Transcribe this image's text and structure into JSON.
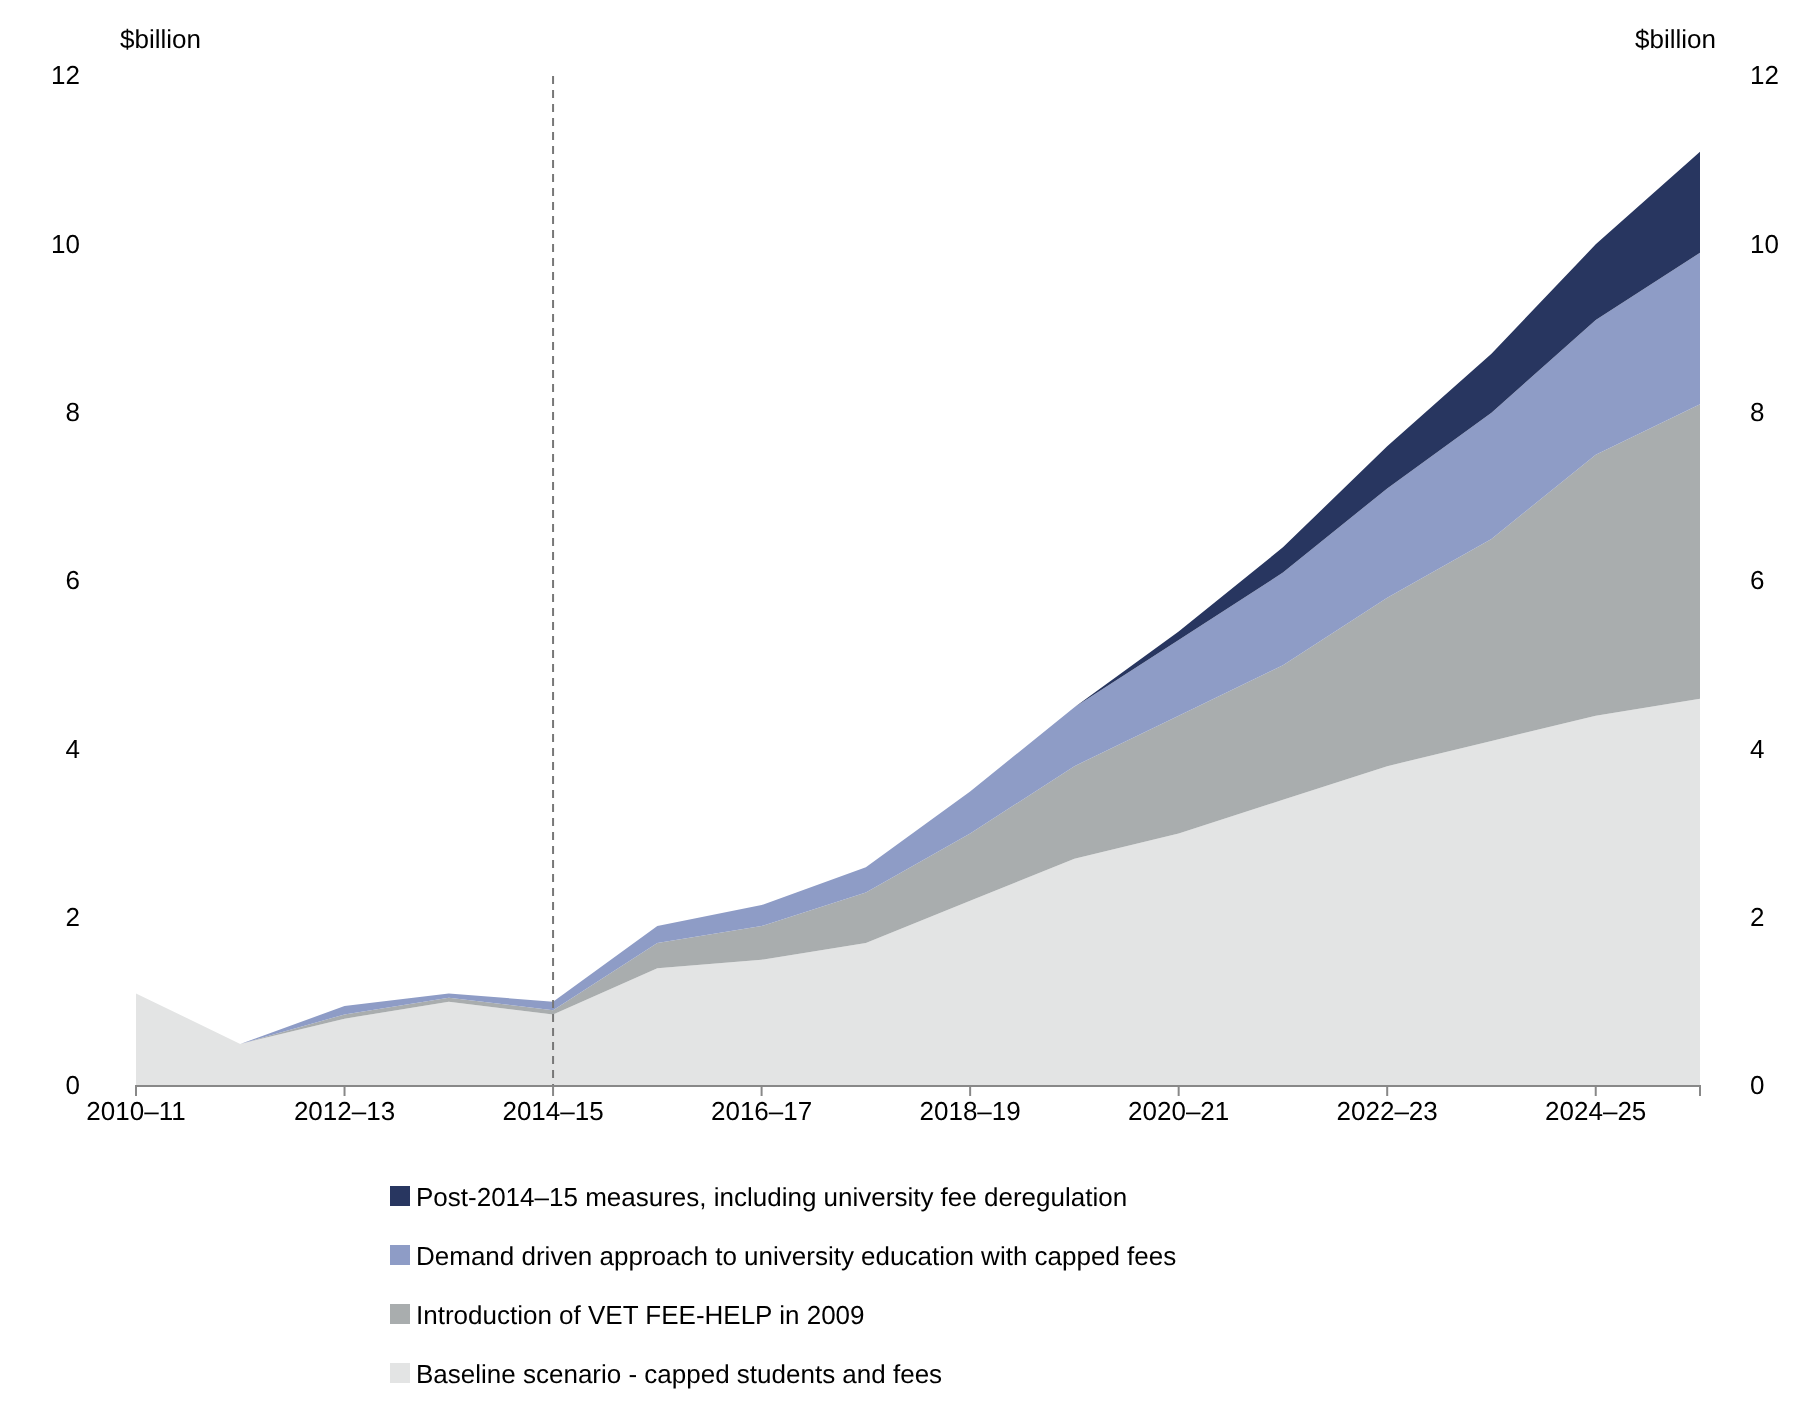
{
  "chart_data": {
    "type": "area",
    "stacked": true,
    "categories": [
      "2010–11",
      null,
      "2012–13",
      null,
      "2014–15",
      null,
      "2016–17",
      null,
      "2018–19",
      null,
      "2020–21",
      null,
      "2022–23",
      null,
      "2024–25",
      null
    ],
    "series": [
      {
        "name": "Baseline scenario - capped students and fees",
        "color": "#e3e4e4",
        "values": [
          1.1,
          0.5,
          0.8,
          1.0,
          0.85,
          1.4,
          1.5,
          1.7,
          2.2,
          2.7,
          3.0,
          3.4,
          3.8,
          4.1,
          4.4,
          4.6
        ]
      },
      {
        "name": "Introduction of VET FEE-HELP in 2009",
        "color": "#a9adae",
        "values": [
          0,
          0,
          0.05,
          0.05,
          0.05,
          0.3,
          0.4,
          0.6,
          0.8,
          1.1,
          1.4,
          1.6,
          2.0,
          2.4,
          3.1,
          3.5
        ]
      },
      {
        "name": "Demand driven approach to university education with capped fees",
        "color": "#8e9cc6",
        "values": [
          0,
          0,
          0.1,
          0.05,
          0.1,
          0.2,
          0.25,
          0.3,
          0.5,
          0.7,
          0.9,
          1.1,
          1.3,
          1.5,
          1.6,
          1.8
        ]
      },
      {
        "name": "Post-2014–15 measures, including university fee deregulation",
        "color": "#283660",
        "values": [
          0,
          0,
          0,
          0,
          0,
          0,
          0,
          0,
          0,
          0,
          0.1,
          0.3,
          0.5,
          0.7,
          0.9,
          1.2
        ]
      }
    ],
    "ylabel": "$billion",
    "y2label": "$billion",
    "ylim": [
      0,
      12
    ],
    "yticks": [
      0,
      2,
      4,
      6,
      8,
      10,
      12
    ],
    "y2lim": [
      0,
      12
    ],
    "y2ticks": [
      0,
      2,
      4,
      6,
      8,
      10,
      12
    ],
    "ref_lines": [
      {
        "axis": "x",
        "value": "2014–15",
        "color": "#777777",
        "line_style": "dashed"
      }
    ],
    "legend": "bottom",
    "grid": false
  }
}
